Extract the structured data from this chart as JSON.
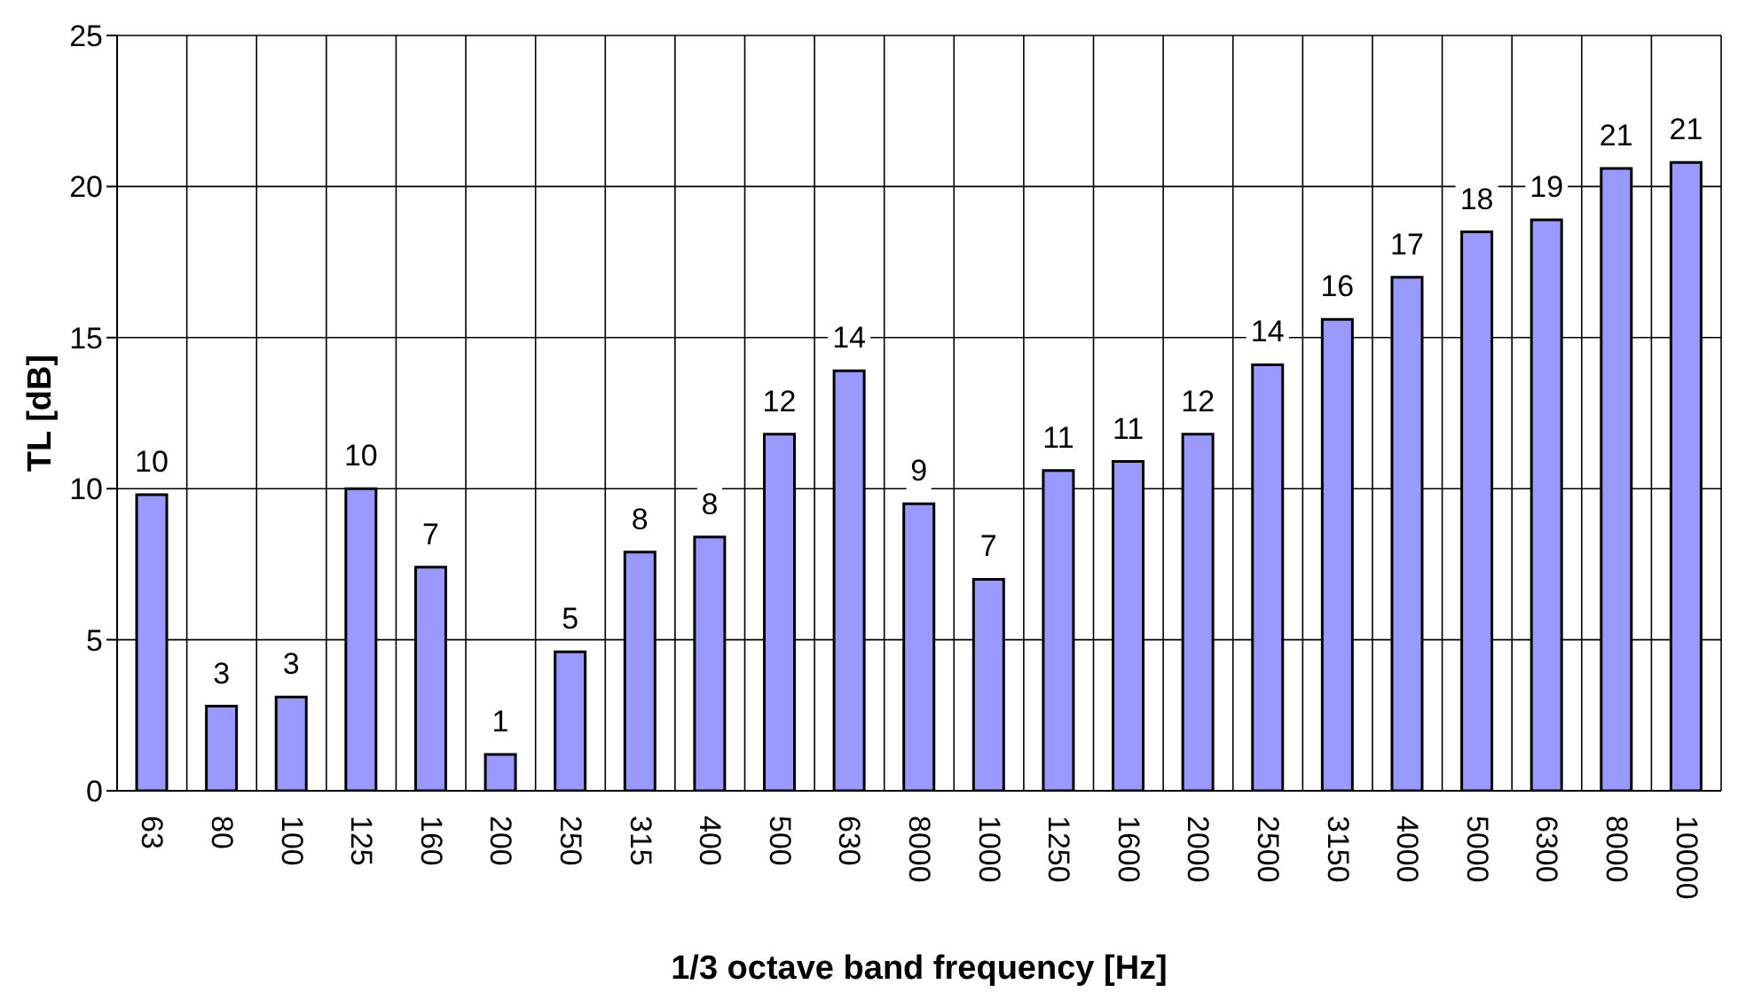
{
  "chart_data": {
    "type": "bar",
    "xlabel": "1/3 octave band frequency [Hz]",
    "ylabel": "TL [dB]",
    "categories": [
      "63",
      "80",
      "100",
      "125",
      "160",
      "200",
      "250",
      "315",
      "400",
      "500",
      "630",
      "8000",
      "1000",
      "1250",
      "1600",
      "2000",
      "2500",
      "3150",
      "4000",
      "5000",
      "6300",
      "8000",
      "10000"
    ],
    "values": [
      9.8,
      2.8,
      3.1,
      10.0,
      7.4,
      1.2,
      4.6,
      7.9,
      8.4,
      11.8,
      13.9,
      9.5,
      7.0,
      10.6,
      10.9,
      11.8,
      14.1,
      15.6,
      17.0,
      18.5,
      18.9,
      20.6,
      20.8
    ],
    "value_labels": [
      "10",
      "3",
      "3",
      "10",
      "7",
      "1",
      "5",
      "8",
      "8",
      "12",
      "14",
      "9",
      "7",
      "11",
      "11",
      "12",
      "14",
      "16",
      "17",
      "18",
      "19",
      "21",
      "21"
    ],
    "color": "#9999ff",
    "ylim": [
      0,
      25
    ],
    "yticks": [
      0,
      5,
      10,
      15,
      20,
      25
    ],
    "grid": true
  }
}
